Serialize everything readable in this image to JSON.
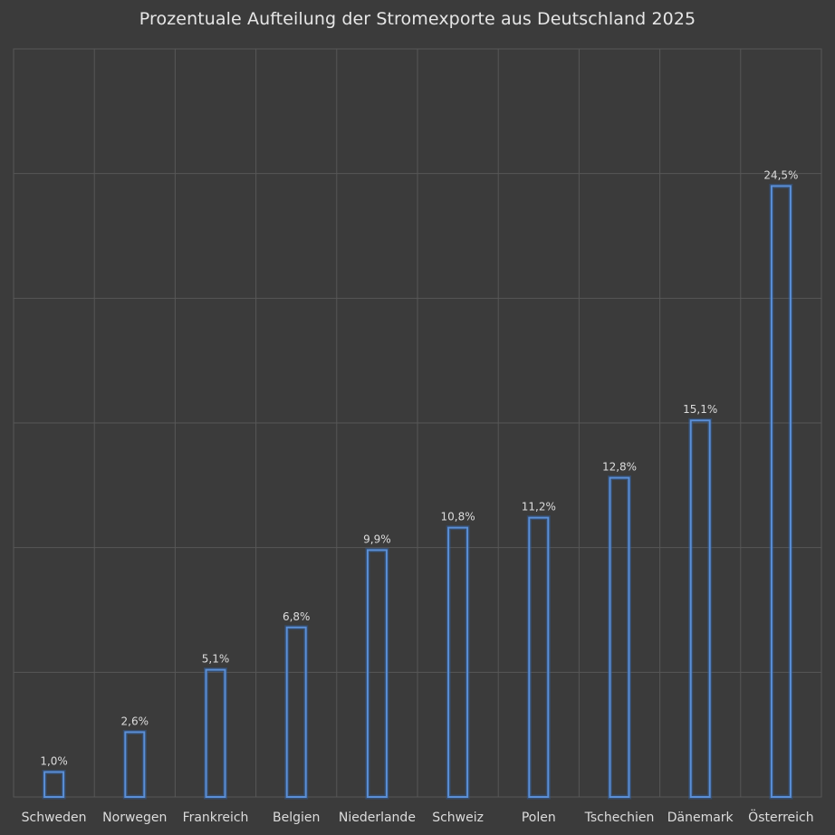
{
  "chart_data": {
    "type": "bar",
    "title": "Prozentuale Aufteilung der Stromexporte aus Deutschland 2025",
    "categories": [
      "Schweden",
      "Norwegen",
      "Frankreich",
      "Belgien",
      "Niederlande",
      "Schweiz",
      "Polen",
      "Tschechien",
      "Dänemark",
      "Österreich"
    ],
    "values": [
      1.0,
      2.6,
      5.1,
      6.8,
      9.9,
      10.8,
      11.2,
      12.8,
      15.1,
      24.5
    ],
    "data_labels": [
      "1,0%",
      "2,6%",
      "5,1%",
      "6,8%",
      "9,9%",
      "10,8%",
      "11,2%",
      "12,8%",
      "15,1%",
      "24,5%"
    ],
    "xlabel": "",
    "ylabel": "",
    "ylim": [
      0,
      30
    ],
    "grid": true,
    "legend": "none",
    "colors": {
      "background": "#3b3b3b",
      "bar_outline": "#5b8fd6",
      "grid": "#575757",
      "text": "#e6e6e6"
    }
  }
}
